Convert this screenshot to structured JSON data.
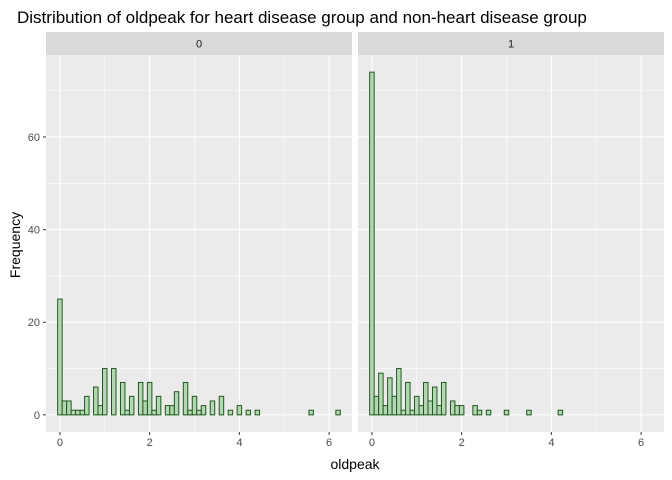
{
  "chart_data": {
    "type": "bar",
    "title": "Distribution of oldpeak for heart disease group and non-heart disease group",
    "xlabel": "oldpeak",
    "ylabel": "Frequency",
    "xlim": [
      -0.31,
      6.51
    ],
    "ylim": [
      -3.7,
      77.7
    ],
    "x_ticks": [
      0,
      2,
      4,
      6
    ],
    "y_ticks": [
      0,
      20,
      40,
      60
    ],
    "bin_width": 0.1,
    "grid": true,
    "legend": "none",
    "colors": {
      "bar_fill": "#b5d6b2",
      "bar_outline": "#1e5a1e",
      "panel_bg": "#ebebeb",
      "strip_bg": "#d9d9d9",
      "grid": "#ffffff"
    },
    "facets": [
      {
        "label": "0",
        "bins": [
          {
            "x": 0.0,
            "count": 25
          },
          {
            "x": 0.1,
            "count": 3
          },
          {
            "x": 0.2,
            "count": 3
          },
          {
            "x": 0.3,
            "count": 1
          },
          {
            "x": 0.4,
            "count": 1
          },
          {
            "x": 0.5,
            "count": 1
          },
          {
            "x": 0.6,
            "count": 4
          },
          {
            "x": 0.8,
            "count": 6
          },
          {
            "x": 0.9,
            "count": 2
          },
          {
            "x": 1.0,
            "count": 10
          },
          {
            "x": 1.2,
            "count": 10
          },
          {
            "x": 1.4,
            "count": 7
          },
          {
            "x": 1.5,
            "count": 1
          },
          {
            "x": 1.6,
            "count": 4
          },
          {
            "x": 1.8,
            "count": 7
          },
          {
            "x": 1.9,
            "count": 3
          },
          {
            "x": 2.0,
            "count": 7
          },
          {
            "x": 2.1,
            "count": 1
          },
          {
            "x": 2.2,
            "count": 4
          },
          {
            "x": 2.4,
            "count": 2
          },
          {
            "x": 2.5,
            "count": 2
          },
          {
            "x": 2.6,
            "count": 5
          },
          {
            "x": 2.8,
            "count": 7
          },
          {
            "x": 2.9,
            "count": 1
          },
          {
            "x": 3.0,
            "count": 4
          },
          {
            "x": 3.1,
            "count": 1
          },
          {
            "x": 3.2,
            "count": 2
          },
          {
            "x": 3.4,
            "count": 3
          },
          {
            "x": 3.6,
            "count": 4
          },
          {
            "x": 3.8,
            "count": 1
          },
          {
            "x": 4.0,
            "count": 2
          },
          {
            "x": 4.2,
            "count": 1
          },
          {
            "x": 4.4,
            "count": 1
          },
          {
            "x": 5.6,
            "count": 1
          },
          {
            "x": 6.2,
            "count": 1
          }
        ]
      },
      {
        "label": "1",
        "bins": [
          {
            "x": 0.0,
            "count": 74
          },
          {
            "x": 0.1,
            "count": 4
          },
          {
            "x": 0.2,
            "count": 9
          },
          {
            "x": 0.3,
            "count": 2
          },
          {
            "x": 0.4,
            "count": 8
          },
          {
            "x": 0.5,
            "count": 4
          },
          {
            "x": 0.6,
            "count": 10
          },
          {
            "x": 0.7,
            "count": 1
          },
          {
            "x": 0.8,
            "count": 7
          },
          {
            "x": 0.9,
            "count": 1
          },
          {
            "x": 1.0,
            "count": 4
          },
          {
            "x": 1.1,
            "count": 2
          },
          {
            "x": 1.2,
            "count": 7
          },
          {
            "x": 1.3,
            "count": 3
          },
          {
            "x": 1.4,
            "count": 6
          },
          {
            "x": 1.5,
            "count": 2
          },
          {
            "x": 1.6,
            "count": 7
          },
          {
            "x": 1.8,
            "count": 3
          },
          {
            "x": 1.9,
            "count": 2
          },
          {
            "x": 2.0,
            "count": 2
          },
          {
            "x": 2.3,
            "count": 2
          },
          {
            "x": 2.4,
            "count": 1
          },
          {
            "x": 2.6,
            "count": 1
          },
          {
            "x": 3.0,
            "count": 1
          },
          {
            "x": 3.5,
            "count": 1
          },
          {
            "x": 4.2,
            "count": 1
          }
        ]
      }
    ]
  }
}
